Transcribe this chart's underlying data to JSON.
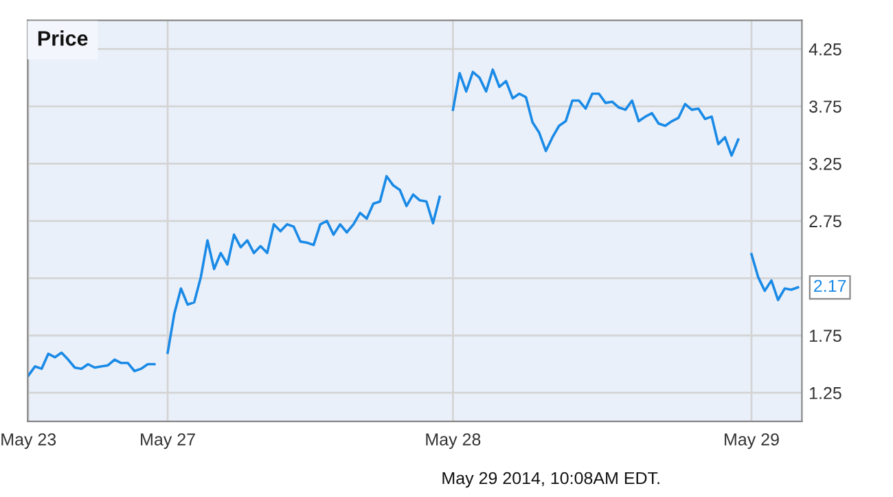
{
  "chart_data": {
    "type": "line",
    "title": "Price",
    "categories": [
      "May 23",
      null,
      null,
      null,
      null,
      null,
      null,
      null,
      null,
      null,
      null,
      null,
      null,
      null,
      null,
      null,
      null,
      null,
      null,
      null,
      null,
      "May 27",
      null,
      null,
      null,
      null,
      null,
      null,
      null,
      null,
      null,
      null,
      null,
      null,
      null,
      null,
      null,
      null,
      null,
      null,
      null,
      null,
      null,
      null,
      null,
      null,
      null,
      null,
      null,
      null,
      null,
      null,
      null,
      null,
      null,
      null,
      null,
      null,
      null,
      null,
      null,
      null,
      null,
      null,
      "May 28",
      null,
      null,
      null,
      null,
      null,
      null,
      null,
      null,
      null,
      null,
      null,
      null,
      null,
      null,
      null,
      null,
      null,
      null,
      null,
      null,
      null,
      null,
      null,
      null,
      null,
      null,
      null,
      null,
      null,
      null,
      null,
      null,
      null,
      null,
      null,
      null,
      null,
      null,
      null,
      null,
      null,
      null,
      null,
      null,
      "May 29",
      null,
      null,
      null,
      null,
      null,
      null,
      null
    ],
    "series": [
      {
        "color": "#1a8ae6",
        "values": [
          1.4,
          1.48,
          1.46,
          1.59,
          1.56,
          1.6,
          1.54,
          1.47,
          1.46,
          1.5,
          1.47,
          1.48,
          1.49,
          1.54,
          1.51,
          1.51,
          1.44,
          1.46,
          1.5,
          1.5,
          null,
          1.6,
          1.94,
          2.16,
          2.02,
          2.04,
          2.26,
          2.58,
          2.33,
          2.47,
          2.37,
          2.63,
          2.52,
          2.58,
          2.47,
          2.53,
          2.47,
          2.72,
          2.66,
          2.72,
          2.7,
          2.57,
          2.56,
          2.54,
          2.72,
          2.75,
          2.63,
          2.72,
          2.65,
          2.72,
          2.82,
          2.77,
          2.9,
          2.92,
          3.14,
          3.06,
          3.02,
          2.88,
          2.98,
          2.93,
          2.92,
          2.73,
          2.96,
          null,
          3.72,
          4.04,
          3.88,
          4.05,
          4.0,
          3.88,
          4.07,
          3.92,
          3.97,
          3.82,
          3.86,
          3.83,
          3.61,
          3.52,
          3.36,
          3.48,
          3.58,
          3.62,
          3.8,
          3.8,
          3.73,
          3.86,
          3.86,
          3.78,
          3.79,
          3.74,
          3.72,
          3.8,
          3.62,
          3.66,
          3.69,
          3.6,
          3.58,
          3.62,
          3.65,
          3.77,
          3.72,
          3.73,
          3.64,
          3.66,
          3.42,
          3.48,
          3.32,
          3.46,
          null,
          2.46,
          2.26,
          2.14,
          2.23,
          2.06,
          2.16,
          2.15,
          2.17
        ],
        "value_labels": [
          null,
          null,
          null,
          null,
          null,
          null,
          null,
          null,
          null,
          null,
          null,
          null,
          null,
          null,
          null,
          null,
          null,
          null,
          null,
          null,
          null,
          null,
          null,
          null,
          null,
          null,
          null,
          null,
          null,
          null,
          null,
          null,
          null,
          null,
          null,
          null,
          null,
          null,
          null,
          null,
          null,
          null,
          null,
          null,
          null,
          null,
          null,
          null,
          null,
          null,
          null,
          null,
          null,
          null,
          null,
          null,
          null,
          null,
          null,
          null,
          null,
          null,
          null,
          null,
          null,
          null,
          null,
          null,
          null,
          null,
          null,
          null,
          null,
          null,
          null,
          null,
          null,
          null,
          null,
          null,
          null,
          null,
          null,
          null,
          null,
          null,
          null,
          null,
          null,
          null,
          null,
          null,
          null,
          null,
          null,
          null,
          null,
          null,
          null,
          null,
          null,
          null,
          null,
          null,
          null,
          null,
          null,
          null,
          null,
          null,
          null,
          null,
          null,
          null,
          null,
          null,
          "2.17"
        ]
      }
    ],
    "ylim": [
      1.0,
      4.5
    ],
    "yticks": [
      1.25,
      1.75,
      {
        "value": 2.25,
        "label": null
      },
      2.75,
      3.25,
      3.75,
      4.25
    ],
    "grid": true,
    "legend": false,
    "marker": "none",
    "line_style": "solid",
    "annotations": [
      "May 29 2014, 10:08AM EDT."
    ]
  }
}
